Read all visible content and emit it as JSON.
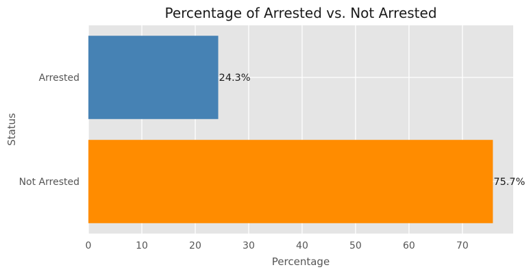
{
  "chart_data": {
    "type": "bar",
    "orientation": "horizontal",
    "title": "Percentage of Arrested vs. Not Arrested",
    "xlabel": "Percentage",
    "ylabel": "Status",
    "categories": [
      "Arrested",
      "Not Arrested"
    ],
    "values": [
      24.3,
      75.7
    ],
    "data_labels": [
      "24.3%",
      "75.7%"
    ],
    "bar_colors": [
      "#4682b4",
      "#ff8c00"
    ],
    "xlim": [
      0,
      79.5
    ],
    "xticks": [
      0,
      10,
      20,
      30,
      40,
      50,
      60,
      70
    ],
    "grid": true,
    "background": "#e5e5e5",
    "grid_color": "#ffffff"
  }
}
